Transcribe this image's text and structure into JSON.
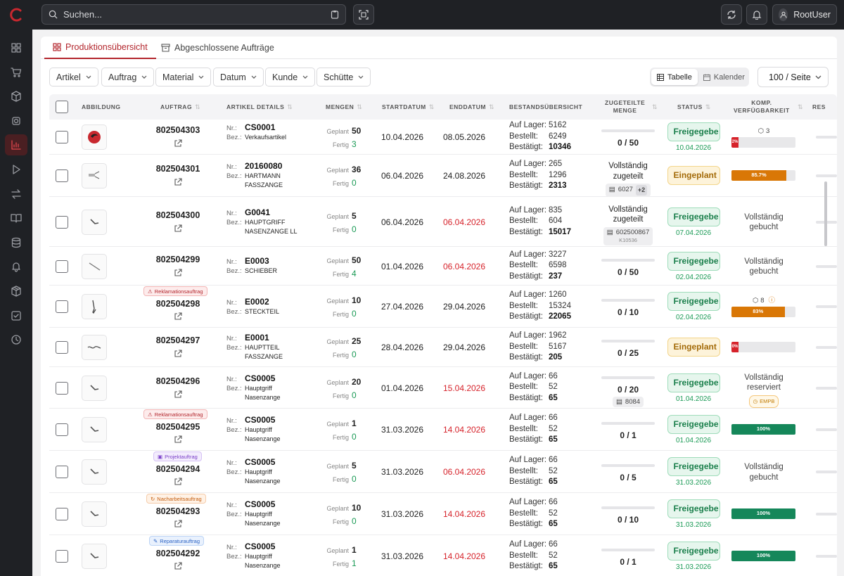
{
  "topbar": {
    "search_placeholder": "Suchen...",
    "user_name": "RootUser"
  },
  "colors": {
    "accent": "#b3262d",
    "sidebar_bg": "#1f2125",
    "green": "#1a7f4b",
    "orange": "#d97706"
  },
  "sidebar": {
    "items": [
      "dashboard-icon",
      "cart-icon",
      "box-icon",
      "chip-icon",
      "chart-icon",
      "play-icon",
      "transfer-icon",
      "book-icon",
      "database-icon",
      "bell-icon",
      "package-icon",
      "checklist-icon",
      "clock-icon"
    ],
    "active": "chart-icon"
  },
  "tabs": [
    {
      "label": "Produktionsübersicht",
      "active": true
    },
    {
      "label": "Abgeschlossene Aufträge",
      "active": false
    }
  ],
  "filters": [
    "Artikel",
    "Auftrag",
    "Material",
    "Datum",
    "Kunde",
    "Schütte"
  ],
  "view_toggle": {
    "table": "Tabelle",
    "calendar": "Kalender",
    "active": "table"
  },
  "per_page": "100 / Seite",
  "columns": {
    "image": "ABBILDUNG",
    "order": "AUFTRAG",
    "details": "ARTIKEL DETAILS",
    "quantities": "MENGEN",
    "start": "STARTDATUM",
    "end": "ENDDATUM",
    "stock": "BESTANDSÜBERSICHT",
    "allocated_1": "ZUGETEILTE",
    "allocated_2": "MENGE",
    "status": "STATUS",
    "avail_1": "KOMP.",
    "avail_2": "VERFÜGBARKEIT",
    "res": "RES"
  },
  "labels": {
    "nr": "Nr.:",
    "bez": "Bez.:",
    "planned": "Geplant",
    "done": "Fertig",
    "on_stock": "Auf Lager:",
    "ordered": "Bestellt:",
    "confirmed": "Bestätigt:"
  },
  "rows": [
    {
      "order": "802504303",
      "badge": "",
      "nr": "CS0001",
      "bez": "Verkaufsartikel",
      "planned": "50",
      "done": "3",
      "start": "10.04.2026",
      "end": "08.05.2026",
      "end_red": false,
      "stock": "5162",
      "ordered": "6249",
      "confirmed": "10346",
      "alloc": "0 / 50",
      "alloc_text": "",
      "chip": "",
      "chip_plus": "",
      "chip_sub": "",
      "status": "Freigegebe",
      "status_date": "10.04.2026",
      "avail_count": "3",
      "avail_pct": 0.02,
      "avail_label": "2%",
      "avail_color": "#d6232b",
      "avail_text": "",
      "emp": ""
    },
    {
      "order": "802504301",
      "badge": "",
      "nr": "20160080",
      "bez": "HARTMANN FASSZANGE",
      "planned": "36",
      "done": "0",
      "start": "06.04.2026",
      "end": "24.08.2026",
      "end_red": false,
      "stock": "265",
      "ordered": "1296",
      "confirmed": "2313",
      "alloc": "",
      "alloc_text": "Vollständig zugeteilt",
      "chip": "6027",
      "chip_plus": "+2",
      "chip_sub": "",
      "status": "Eingeplant",
      "status_date": "",
      "avail_count": "",
      "avail_pct": 0.857,
      "avail_label": "85.7%",
      "avail_color": "#d97706",
      "avail_text": "",
      "emp": ""
    },
    {
      "order": "802504300",
      "badge": "",
      "nr": "G0041",
      "bez": "HAUPTGRIFF NASENZANGE LL",
      "planned": "5",
      "done": "0",
      "start": "06.04.2026",
      "end": "06.04.2026",
      "end_red": true,
      "stock": "835",
      "ordered": "604",
      "confirmed": "15017",
      "alloc": "",
      "alloc_text": "Vollständig zugeteilt",
      "chip": "602500867",
      "chip_plus": "",
      "chip_sub": "K10536",
      "status": "Freigegebe",
      "status_date": "07.04.2026",
      "avail_count": "",
      "avail_pct": null,
      "avail_label": "",
      "avail_color": "",
      "avail_text": "Vollständig gebucht",
      "emp": ""
    },
    {
      "order": "802504299",
      "badge": "",
      "nr": "E0003",
      "bez": "SCHIEBER",
      "planned": "50",
      "done": "4",
      "start": "01.04.2026",
      "end": "06.04.2026",
      "end_red": true,
      "stock": "3227",
      "ordered": "6598",
      "confirmed": "237",
      "alloc": "0 / 50",
      "alloc_text": "",
      "chip": "",
      "chip_plus": "",
      "chip_sub": "",
      "status": "Freigegebe",
      "status_date": "02.04.2026",
      "avail_count": "",
      "avail_pct": null,
      "avail_label": "",
      "avail_color": "",
      "avail_text": "Vollständig gebucht",
      "emp": ""
    },
    {
      "order": "802504298",
      "badge": "Reklamationsauftrag",
      "badge_type": "rekl",
      "nr": "E0002",
      "bez": "STECKTEIL",
      "planned": "10",
      "done": "0",
      "start": "27.04.2026",
      "end": "29.04.2026",
      "end_red": false,
      "stock": "1260",
      "ordered": "15324",
      "confirmed": "22065",
      "alloc": "0 / 10",
      "alloc_text": "",
      "chip": "",
      "chip_plus": "",
      "chip_sub": "",
      "status": "Freigegebe",
      "status_date": "02.04.2026",
      "avail_count": "8",
      "avail_pct": 0.83,
      "avail_label": "83%",
      "avail_color": "#d97706",
      "avail_text": "",
      "emp": ""
    },
    {
      "order": "802504297",
      "badge": "",
      "nr": "E0001",
      "bez": "HAUPTTEIL FASSZANGE",
      "planned": "25",
      "done": "0",
      "start": "28.04.2026",
      "end": "29.04.2026",
      "end_red": false,
      "stock": "1962",
      "ordered": "5167",
      "confirmed": "205",
      "alloc": "0 / 25",
      "alloc_text": "",
      "chip": "",
      "chip_plus": "",
      "chip_sub": "",
      "status": "Eingeplant",
      "status_date": "",
      "avail_count": "",
      "avail_pct": 0.0,
      "avail_label": "0%",
      "avail_color": "#d6232b",
      "avail_text": "",
      "emp": ""
    },
    {
      "order": "802504296",
      "badge": "",
      "nr": "CS0005",
      "bez": "Hauptgriff Nasenzange",
      "planned": "20",
      "done": "0",
      "start": "01.04.2026",
      "end": "15.04.2026",
      "end_red": true,
      "stock": "66",
      "ordered": "52",
      "confirmed": "65",
      "alloc": "0 / 20",
      "alloc_text": "",
      "chip": "8084",
      "chip_plus": "",
      "chip_sub": "",
      "status": "Freigegebe",
      "status_date": "01.04.2026",
      "avail_count": "",
      "avail_pct": null,
      "avail_label": "",
      "avail_color": "",
      "avail_text": "Vollständig reserviert",
      "emp": "EMPB"
    },
    {
      "order": "802504295",
      "badge": "Reklamationsauftrag",
      "badge_type": "rekl",
      "nr": "CS0005",
      "bez": "Hauptgriff Nasenzange",
      "planned": "1",
      "done": "0",
      "start": "31.03.2026",
      "end": "14.04.2026",
      "end_red": true,
      "stock": "66",
      "ordered": "52",
      "confirmed": "65",
      "alloc": "0 / 1",
      "alloc_text": "",
      "chip": "",
      "chip_plus": "",
      "chip_sub": "",
      "status": "Freigegebe",
      "status_date": "01.04.2026",
      "avail_count": "",
      "avail_pct": 1.0,
      "avail_label": "100%",
      "avail_color": "#15875a",
      "avail_text": "",
      "emp": ""
    },
    {
      "order": "802504294",
      "badge": "Projektauftrag",
      "badge_type": "proj",
      "nr": "CS0005",
      "bez": "Hauptgriff Nasenzange",
      "planned": "5",
      "done": "0",
      "start": "31.03.2026",
      "end": "06.04.2026",
      "end_red": true,
      "stock": "66",
      "ordered": "52",
      "confirmed": "65",
      "alloc": "0 / 5",
      "alloc_text": "",
      "chip": "",
      "chip_plus": "",
      "chip_sub": "",
      "status": "Freigegebe",
      "status_date": "31.03.2026",
      "avail_count": "",
      "avail_pct": null,
      "avail_label": "",
      "avail_color": "",
      "avail_text": "Vollständig gebucht",
      "emp": ""
    },
    {
      "order": "802504293",
      "badge": "Nacharbeitsauftrag",
      "badge_type": "nach",
      "nr": "CS0005",
      "bez": "Hauptgriff Nasenzange",
      "planned": "10",
      "done": "0",
      "start": "31.03.2026",
      "end": "14.04.2026",
      "end_red": true,
      "stock": "66",
      "ordered": "52",
      "confirmed": "65",
      "alloc": "0 / 10",
      "alloc_text": "",
      "chip": "",
      "chip_plus": "",
      "chip_sub": "",
      "status": "Freigegebe",
      "status_date": "31.03.2026",
      "avail_count": "",
      "avail_pct": 1.0,
      "avail_label": "100%",
      "avail_color": "#15875a",
      "avail_text": "",
      "emp": ""
    },
    {
      "order": "802504292",
      "badge": "Reparaturauftrag",
      "badge_type": "rep",
      "nr": "CS0005",
      "bez": "Hauptgriff Nasenzange",
      "planned": "1",
      "done": "1",
      "start": "31.03.2026",
      "end": "14.04.2026",
      "end_red": true,
      "stock": "66",
      "ordered": "52",
      "confirmed": "65",
      "alloc": "0 / 1",
      "alloc_text": "",
      "chip": "",
      "chip_plus": "",
      "chip_sub": "",
      "status": "Freigegebe",
      "status_date": "31.03.2026",
      "avail_count": "",
      "avail_pct": 1.0,
      "avail_label": "100%",
      "avail_color": "#15875a",
      "avail_text": "",
      "emp": ""
    }
  ]
}
